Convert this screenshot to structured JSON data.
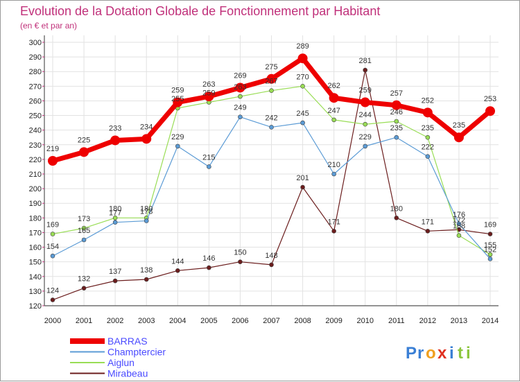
{
  "chart_data": {
    "type": "line",
    "title": "Evolution de la Dotation Globale de Fonctionnement par Habitant",
    "subtitle": "(en € et par an)",
    "x": [
      "2000",
      "2001",
      "2002",
      "2003",
      "2004",
      "2005",
      "2006",
      "2007",
      "2008",
      "2009",
      "2010",
      "2011",
      "2012",
      "2013",
      "2014"
    ],
    "ylim": [
      120,
      300
    ],
    "y_ticks": [
      120,
      130,
      140,
      150,
      160,
      170,
      180,
      190,
      200,
      210,
      220,
      230,
      240,
      250,
      260,
      270,
      280,
      290,
      300
    ],
    "grid": true,
    "legend_position": "bottom-left",
    "series": [
      {
        "name": "BARRAS",
        "color": "#ee0000",
        "values": [
          219,
          225,
          233,
          234,
          259,
          263,
          269,
          275,
          289,
          262,
          259,
          257,
          252,
          235,
          253
        ]
      },
      {
        "name": "Champtercier",
        "color": "#5b9bd5",
        "values": [
          154,
          165,
          177,
          178,
          229,
          215,
          249,
          242,
          245,
          210,
          229,
          235,
          222,
          176,
          152
        ]
      },
      {
        "name": "Aiglun",
        "color": "#99dd55",
        "values": [
          169,
          173,
          180,
          180,
          255,
          259,
          263,
          267,
          270,
          247,
          244,
          246,
          235,
          168,
          155
        ]
      },
      {
        "name": "Mirabeau",
        "color": "#6b1d1d",
        "values": [
          124,
          132,
          137,
          138,
          144,
          146,
          150,
          148,
          201,
          171,
          281,
          180,
          171,
          172,
          169
        ]
      }
    ],
    "labels": {
      "BARRAS": [
        "219",
        "225",
        "233",
        "234",
        "259",
        "263",
        "269",
        "275",
        "289",
        "262",
        "259",
        "257",
        "252",
        "235",
        "253"
      ],
      "Champtercier": [
        "154",
        "165",
        "177",
        "178",
        "229",
        "215",
        "249",
        "242",
        "245",
        "210",
        "229",
        "235",
        "222",
        "176",
        "152"
      ],
      "Aiglun": [
        "169",
        "173",
        "180",
        "180",
        "255",
        "259",
        "263",
        "267",
        "270",
        "247",
        "244",
        "246",
        "235",
        "168",
        "155"
      ],
      "Mirabeau": [
        "124",
        "132",
        "137",
        "138",
        "144",
        "146",
        "150",
        "148",
        "201",
        "171",
        "281",
        "180",
        "171",
        "172",
        "169"
      ]
    }
  },
  "logo": {
    "text": "Proxiti"
  }
}
